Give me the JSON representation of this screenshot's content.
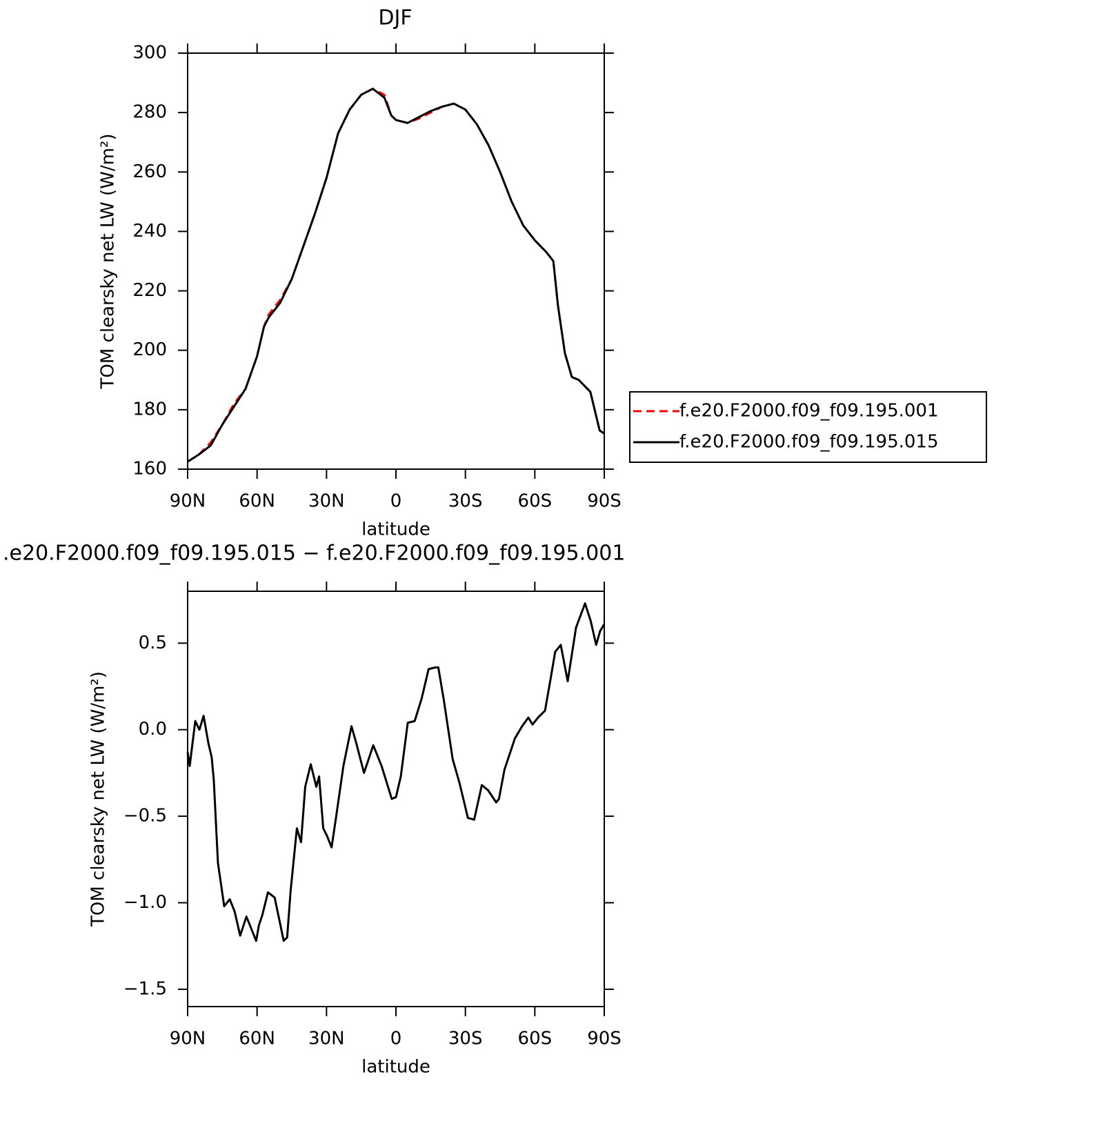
{
  "chart_data": [
    {
      "type": "line",
      "title": "DJF",
      "xlabel": "latitude",
      "ylabel": "TOM clearsky net LW (W/m²)",
      "x": [
        90,
        85,
        80,
        75,
        70,
        65,
        60,
        57,
        55,
        50,
        45,
        40,
        35,
        30,
        25,
        20,
        15,
        10,
        5,
        2,
        0,
        -5,
        -10,
        -15,
        -20,
        -25,
        -30,
        -35,
        -40,
        -45,
        -50,
        -55,
        -60,
        -65,
        -68,
        -70,
        -73,
        -76,
        -79,
        -84,
        -88,
        -90
      ],
      "series": [
        {
          "name": "f.e20.F2000.f09_f09.195.001",
          "color": "#ff0000",
          "dash": true,
          "values": [
            162.5,
            165,
            169,
            175,
            182,
            187,
            198,
            208,
            212,
            217,
            224,
            235,
            246,
            258,
            273,
            281,
            286,
            288,
            286,
            279,
            277.5,
            276.5,
            278,
            280,
            282,
            283,
            281,
            276,
            269,
            260,
            250,
            242,
            237,
            233,
            230,
            215,
            199,
            191,
            190,
            186,
            173,
            172
          ]
        },
        {
          "name": "f.e20.F2000.f09_f09.195.015",
          "color": "#000000",
          "dash": false,
          "values": [
            162.5,
            165,
            168,
            175,
            181,
            187,
            198,
            208,
            211,
            216,
            224,
            235,
            246,
            258,
            273,
            281,
            286,
            288,
            285,
            279,
            277.5,
            276.5,
            278.5,
            280.5,
            282,
            283,
            281,
            276,
            269,
            260,
            250,
            242,
            237,
            233,
            230,
            215,
            199,
            191,
            190,
            186,
            173,
            172
          ]
        }
      ],
      "xlim": [
        90,
        -90
      ],
      "xticks": [
        {
          "value": 90,
          "label": "90N"
        },
        {
          "value": 60,
          "label": "60N"
        },
        {
          "value": 30,
          "label": "30N"
        },
        0,
        {
          "value": -30,
          "label": "30S"
        },
        {
          "value": -60,
          "label": "60S"
        },
        {
          "value": -90,
          "label": "90S"
        }
      ],
      "ylim": [
        160,
        300
      ],
      "yticks": [
        160,
        180,
        200,
        220,
        240,
        260,
        280,
        300
      ],
      "legend": "right"
    },
    {
      "type": "line",
      "title": ".e20.F2000.f09_f09.195.015 − f.e20.F2000.f09_f09.195.001",
      "xlabel": "latitude",
      "ylabel": "TOM clearsky net LW (W/m²)",
      "x": [
        90,
        89.1,
        86.7,
        84.9,
        83.1,
        81.0,
        79.6,
        78.7,
        76.9,
        74.2,
        71.8,
        69.7,
        67.3,
        64.6,
        62.5,
        60.4,
        59.2,
        57.7,
        55.3,
        52.4,
        48.5,
        47.0,
        45.5,
        42.8,
        41.0,
        39.2,
        36.8,
        34.4,
        33.2,
        31.4,
        29.9,
        27.8,
        25.7,
        22.7,
        19.2,
        17.1,
        13.8,
        9.8,
        6.2,
        1.8,
        0.0,
        -2.1,
        -5.1,
        -8.1,
        -11.1,
        -14.1,
        -17.1,
        -18.3,
        -20.7,
        -24.5,
        -27.5,
        -31.1,
        -33.8,
        -37.1,
        -39.8,
        -43.3,
        -44.5,
        -46.9,
        -51.4,
        -54.5,
        -57.2,
        -59.0,
        -61.4,
        -64.4,
        -66.5,
        -68.8,
        -71.2,
        -74.2,
        -77.8,
        -81.7,
        -84.1,
        -86.5,
        -88.2,
        -90
      ],
      "series": [
        {
          "color": "#000000",
          "values": [
            -0.13,
            -0.21,
            0.05,
            0,
            0.08,
            -0.08,
            -0.16,
            -0.29,
            -0.77,
            -1.02,
            -0.98,
            -1.05,
            -1.19,
            -1.08,
            -1.15,
            -1.22,
            -1.13,
            -1.07,
            -0.94,
            -0.97,
            -1.22,
            -1.2,
            -0.93,
            -0.57,
            -0.65,
            -0.33,
            -0.2,
            -0.33,
            -0.27,
            -0.57,
            -0.61,
            -0.68,
            -0.49,
            -0.21,
            0.02,
            -0.08,
            -0.25,
            -0.09,
            -0.21,
            -0.4,
            -0.39,
            -0.27,
            0.04,
            0.05,
            0.18,
            0.35,
            0.36,
            0.36,
            0.17,
            -0.17,
            -0.31,
            -0.51,
            -0.52,
            -0.32,
            -0.35,
            -0.42,
            -0.4,
            -0.23,
            -0.05,
            0.02,
            0.07,
            0.03,
            0.07,
            0.11,
            0.27,
            0.45,
            0.49,
            0.28,
            0.59,
            0.73,
            0.63,
            0.49,
            0.57,
            0.61
          ]
        }
      ],
      "xlim": [
        90,
        -90
      ],
      "xticks": [
        {
          "value": 90,
          "label": "90N"
        },
        {
          "value": 60,
          "label": "60N"
        },
        {
          "value": 30,
          "label": "30N"
        },
        0,
        {
          "value": -30,
          "label": "30S"
        },
        {
          "value": -60,
          "label": "60S"
        },
        {
          "value": -90,
          "label": "90S"
        }
      ],
      "ylim": [
        -1.6,
        0.8
      ],
      "yticks": [
        {
          "value": -1.5,
          "label": "−1.5"
        },
        {
          "value": -1,
          "label": "−1.0"
        },
        {
          "value": -0.5,
          "label": "−0.5"
        },
        {
          "value": 0,
          "label": "0.0"
        },
        0.5
      ]
    }
  ]
}
